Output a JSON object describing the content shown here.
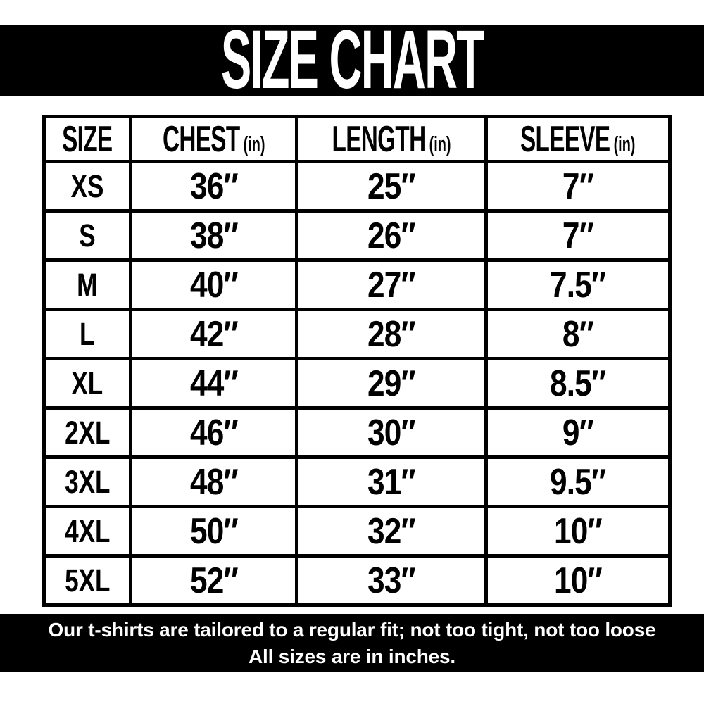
{
  "title_bar": {
    "title": "SIZE CHART"
  },
  "table": {
    "headers": [
      {
        "label": "SIZE",
        "unit": ""
      },
      {
        "label": "CHEST",
        "unit": "(in)"
      },
      {
        "label": "LENGTH",
        "unit": "(in)"
      },
      {
        "label": "SLEEVE",
        "unit": "(in)"
      }
    ]
  },
  "footer": {
    "line1": "Our t-shirts are tailored to a regular fit; not too tight, not too loose",
    "line2": "All sizes are in inches."
  },
  "colors": {
    "bar_background": "#000000",
    "bar_text": "#ffffff",
    "table_border": "#000000",
    "table_text": "#000000",
    "page_background": "#ffffff"
  },
  "chart_data": {
    "type": "table",
    "title": "SIZE CHART",
    "columns": [
      "SIZE",
      "CHEST (in)",
      "LENGTH (in)",
      "SLEEVE (in)"
    ],
    "rows": [
      [
        "XS",
        "36″",
        "25″",
        "7″"
      ],
      [
        "S",
        "38″",
        "26″",
        "7″"
      ],
      [
        "M",
        "40″",
        "27″",
        "7.5″"
      ],
      [
        "L",
        "42″",
        "28″",
        "8″"
      ],
      [
        "XL",
        "44″",
        "29″",
        "8.5″"
      ],
      [
        "2XL",
        "46″",
        "30″",
        "9″"
      ],
      [
        "3XL",
        "48″",
        "31″",
        "9.5″"
      ],
      [
        "4XL",
        "50″",
        "32″",
        "10″"
      ],
      [
        "5XL",
        "52″",
        "33″",
        "10″"
      ]
    ],
    "notes": [
      "Our t-shirts are tailored to a regular fit; not too tight, not too loose",
      "All sizes are in inches."
    ]
  }
}
